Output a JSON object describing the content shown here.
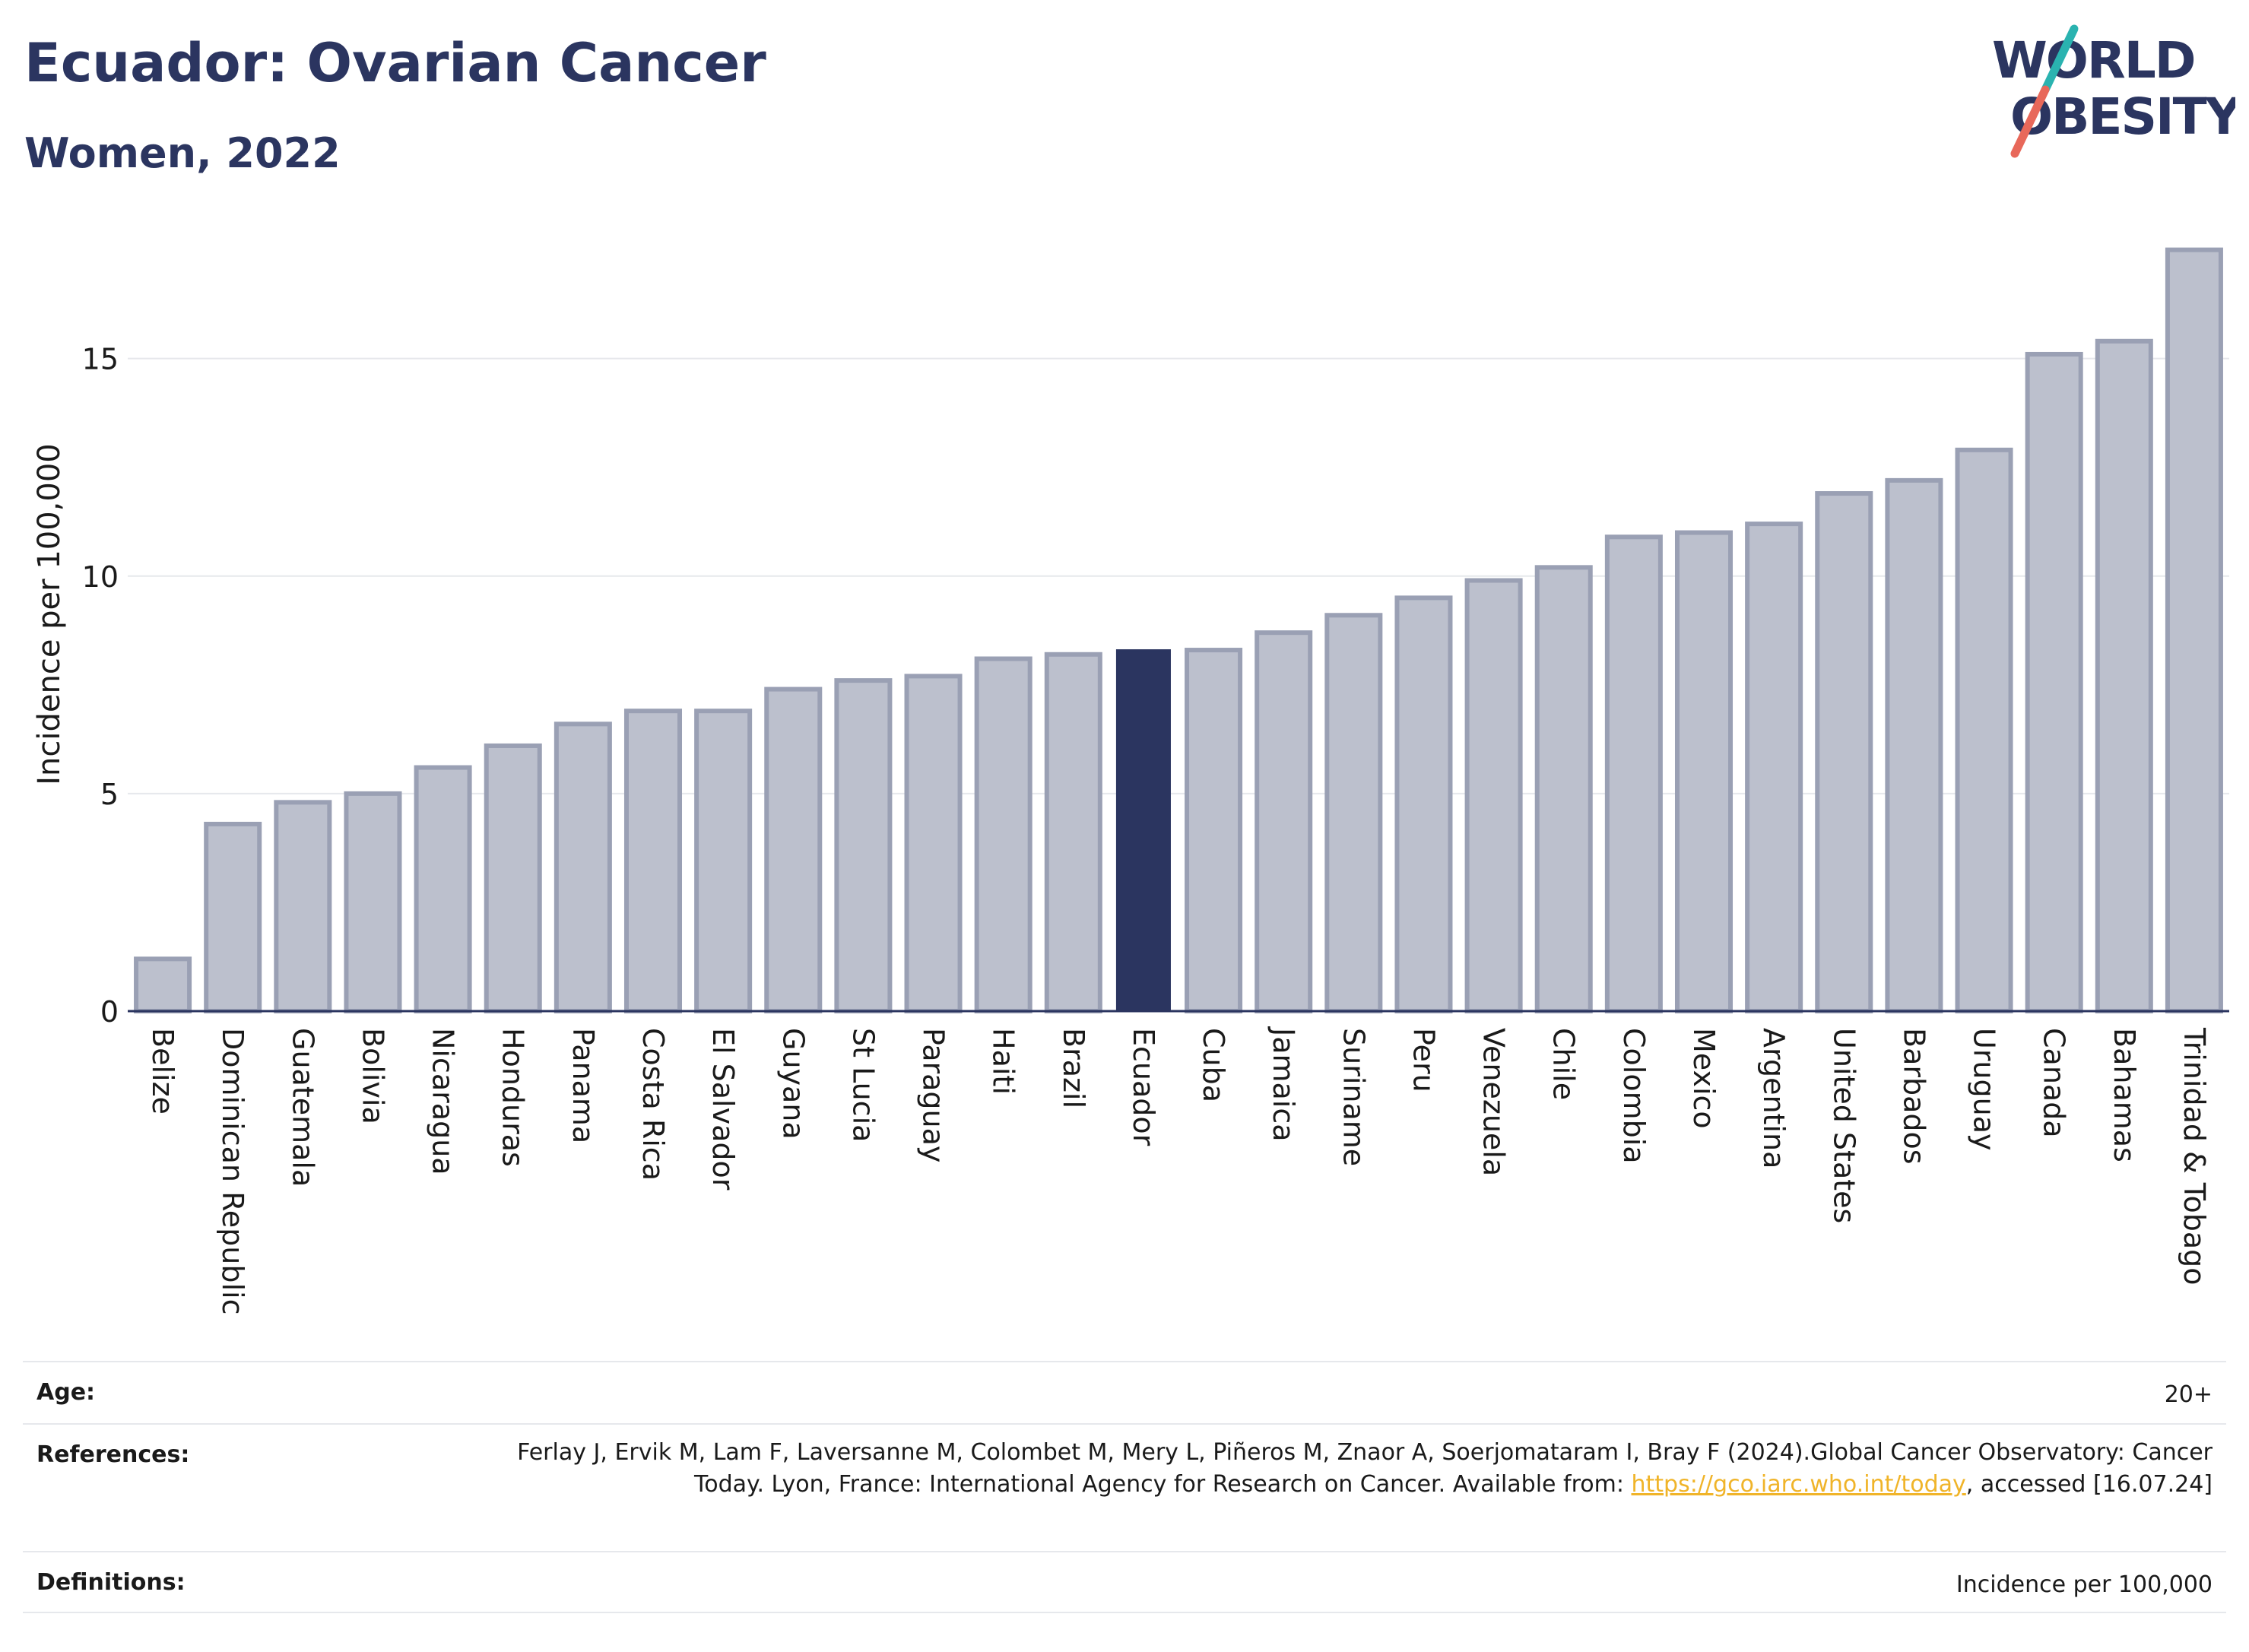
{
  "header": {
    "title": "Ecuador: Ovarian Cancer",
    "subtitle": "Women, 2022"
  },
  "logo": {
    "line1": "WORLD",
    "line2": "OBESITY"
  },
  "colors": {
    "highlight_bar": "#2b3560",
    "default_bar": "#bcc0cd",
    "default_bar_border": "#9aa0b4",
    "title": "#2b3560",
    "link": "#f0b429",
    "logo_teal": "#2ab3b0",
    "logo_coral": "#e8685a"
  },
  "chart_data": {
    "type": "bar",
    "ylabel": "Incidence per 100,000",
    "ylim": [
      0,
      18
    ],
    "yticks": [
      0,
      5,
      10,
      15
    ],
    "grid": true,
    "highlight": "Ecuador",
    "categories": [
      "Belize",
      "Dominican Republic",
      "Guatemala",
      "Bolivia",
      "Nicaragua",
      "Honduras",
      "Panama",
      "Costa Rica",
      "El Salvador",
      "Guyana",
      "St Lucia",
      "Paraguay",
      "Haiti",
      "Brazil",
      "Ecuador",
      "Cuba",
      "Jamaica",
      "Suriname",
      "Peru",
      "Venezuela",
      "Chile",
      "Colombia",
      "Mexico",
      "Argentina",
      "United States",
      "Barbados",
      "Uruguay",
      "Canada",
      "Bahamas",
      "Trinidad & Tobago"
    ],
    "values": [
      1.2,
      4.3,
      4.8,
      5.0,
      5.6,
      6.1,
      6.6,
      6.9,
      6.9,
      7.4,
      7.6,
      7.7,
      8.1,
      8.2,
      8.3,
      8.3,
      8.7,
      9.1,
      9.5,
      9.9,
      10.2,
      10.9,
      11.0,
      11.2,
      11.9,
      12.2,
      12.9,
      15.1,
      15.4,
      17.5
    ]
  },
  "info_table": {
    "age_label": "Age:",
    "age_value": "20+",
    "references_label": "References:",
    "references_text_before": "Ferlay J, Ervik M, Lam F, Laversanne M, Colombet M, Mery L, Piñeros M, Znaor A, Soerjomataram I, Bray F (2024).Global Cancer Observatory: Cancer Today. Lyon, France: International Agency for Research on Cancer. Available from: ",
    "references_link": "https://gco.iarc.who.int/today",
    "references_text_after": ", accessed [16.07.24]",
    "definitions_label": "Definitions:",
    "definitions_value": "Incidence per 100,000"
  }
}
